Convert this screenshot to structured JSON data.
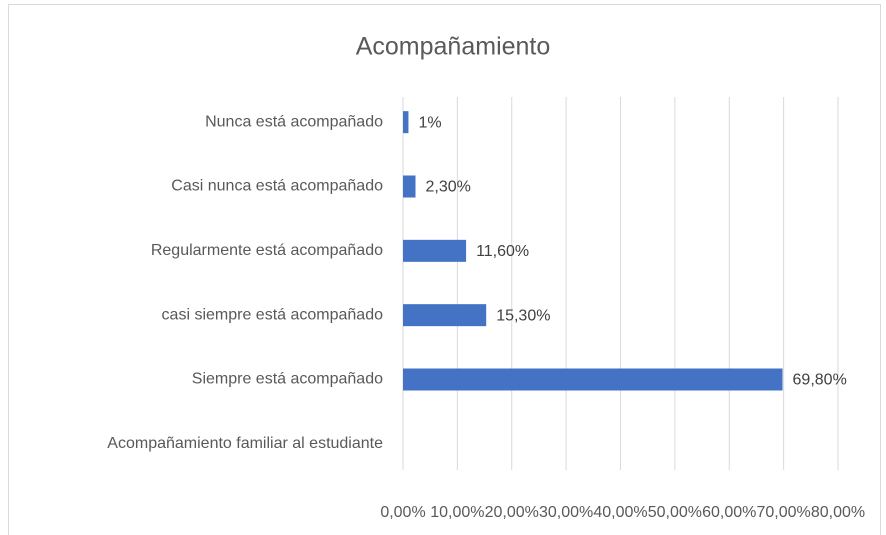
{
  "chart_data": {
    "type": "barh",
    "title": "Acompañamiento",
    "categories": [
      "Nunca está acompañado",
      "Casi nunca está acompañado",
      "Regularmente está acompañado",
      "casi siempre está acompañado",
      "Siempre está acompañado",
      "Acompañamiento familiar al estudiante"
    ],
    "values": [
      1,
      2.3,
      11.6,
      15.3,
      69.8,
      null
    ],
    "value_labels": [
      "1%",
      "2,30%",
      "11,60%",
      "15,30%",
      "69,80%",
      null
    ],
    "color": "#4472c4",
    "xlim": [
      0,
      80
    ],
    "xticks": [
      {
        "value": 0,
        "label": "0,00%"
      },
      {
        "value": 10,
        "label": "10,00%"
      },
      {
        "value": 20,
        "label": "20,00%"
      },
      {
        "value": 30,
        "label": "30,00%"
      },
      {
        "value": 40,
        "label": "40,00%"
      },
      {
        "value": 50,
        "label": "50,00%"
      },
      {
        "value": 60,
        "label": "60,00%"
      },
      {
        "value": 70,
        "label": "70,00%"
      },
      {
        "value": 80,
        "label": "80,00%"
      }
    ],
    "grid": true
  }
}
